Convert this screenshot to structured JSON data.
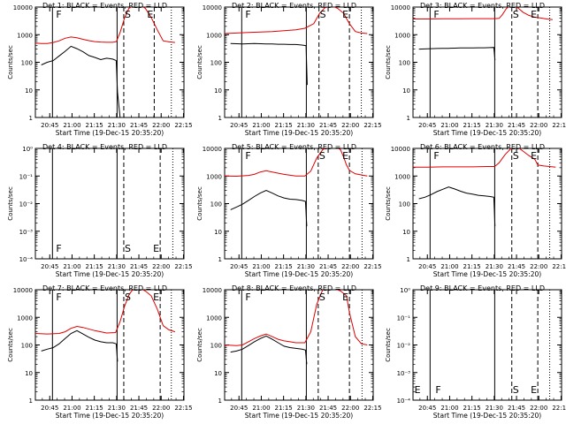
{
  "colors": {
    "events": "#000000",
    "lld": "#e00000",
    "axes": "#000000",
    "background": "#ffffff"
  },
  "common": {
    "ylabel": "Counts/sec",
    "xlabel": "Start Time (19-Dec-15 20:35:20)",
    "xtick_labels": [
      "20:45",
      "21:00",
      "21:15",
      "21:30",
      "21:45",
      "22:00",
      "22:15"
    ],
    "x_tick_minutes": [
      9.67,
      24.67,
      39.67,
      54.67,
      69.67,
      84.67,
      99.67
    ],
    "xlim_minutes": [
      0,
      100
    ],
    "ytick_labels": [
      "1",
      "10",
      "100",
      "1000",
      "10000"
    ],
    "ylim": [
      1,
      10000
    ],
    "yscale": "log"
  },
  "chart_data": [
    {
      "type": "line",
      "title": "Det 1: BLACK = Events, RED = LLD",
      "marker_labels": [
        "F",
        "S",
        "E"
      ],
      "markers": {
        "solid": [
          11.5,
          55.0
        ],
        "dashed": [
          59.5,
          80.0
        ],
        "dotted": [
          91.5
        ]
      },
      "events": {
        "x": [
          4,
          8,
          12,
          16,
          20,
          24,
          28,
          32,
          36,
          40,
          44,
          48,
          52,
          54.4,
          55.3,
          57
        ],
        "y": [
          80,
          100,
          115,
          170,
          250,
          380,
          310,
          240,
          175,
          150,
          125,
          140,
          130,
          115,
          8,
          0
        ]
      },
      "lld": {
        "x": [
          0,
          4,
          8,
          12,
          16,
          20,
          24,
          28,
          32,
          36,
          40,
          44,
          48,
          52,
          54.5,
          57,
          60,
          63,
          66,
          70,
          74,
          78,
          82,
          86,
          90,
          94
        ],
        "y": [
          500,
          480,
          480,
          520,
          600,
          740,
          820,
          770,
          680,
          610,
          560,
          540,
          530,
          530,
          560,
          1200,
          4000,
          9000,
          11000,
          12000,
          9000,
          4200,
          1500,
          600,
          550,
          520
        ]
      }
    },
    {
      "type": "line",
      "title": "Det 2: BLACK = Events, RED = LLD",
      "marker_labels": [
        "F",
        "S",
        "E"
      ],
      "markers": {
        "solid": [
          11.5,
          55.0
        ],
        "dashed": [
          63.5,
          84.0
        ],
        "dotted": [
          92.0
        ]
      },
      "events": {
        "x": [
          4,
          8,
          12,
          16,
          20,
          24,
          28,
          32,
          36,
          40,
          44,
          48,
          52,
          54.8,
          55.6
        ],
        "y": [
          480,
          470,
          460,
          470,
          480,
          470,
          460,
          460,
          450,
          450,
          440,
          440,
          420,
          400,
          15
        ]
      },
      "lld": {
        "x": [
          0,
          8,
          16,
          24,
          32,
          40,
          48,
          54,
          60,
          64,
          68,
          72,
          76,
          80,
          84,
          88,
          92,
          96
        ],
        "y": [
          1100,
          1150,
          1200,
          1250,
          1300,
          1400,
          1500,
          1700,
          2500,
          6000,
          10000,
          11000,
          9000,
          6000,
          2500,
          1300,
          1150,
          1100
        ]
      }
    },
    {
      "type": "line",
      "title": "Det 3: BLACK = Events, RED = LLD",
      "marker_labels": [
        "F",
        "S",
        "E"
      ],
      "markers": {
        "solid": [
          11.5,
          55.0
        ],
        "dashed": [
          66.5,
          84.0
        ],
        "dotted": [
          92.0
        ]
      },
      "events": {
        "x": [
          4,
          8,
          12,
          16,
          20,
          24,
          28,
          32,
          36,
          40,
          44,
          48,
          52,
          54.4,
          55.2
        ],
        "y": [
          300,
          305,
          310,
          315,
          320,
          320,
          325,
          330,
          330,
          330,
          335,
          335,
          340,
          345,
          120
        ]
      },
      "lld": {
        "x": [
          0,
          10,
          20,
          30,
          40,
          50,
          55,
          58,
          60,
          63,
          66,
          70,
          74,
          78,
          82,
          86,
          90,
          94
        ],
        "y": [
          3700,
          3700,
          3750,
          3750,
          3800,
          3800,
          3800,
          3900,
          5200,
          9000,
          11500,
          10000,
          6500,
          5000,
          4300,
          4000,
          3700,
          3500
        ]
      }
    },
    {
      "type": "line",
      "title": "Det 4: BLACK = Events, RED = LLD",
      "marker_labels": [
        "F",
        "S",
        "E"
      ],
      "markers": {
        "solid": [
          11.5,
          55.0
        ],
        "dashed": [
          59.5,
          84.0
        ],
        "dotted": [
          92.5
        ]
      },
      "events": null,
      "lld": null
    },
    {
      "type": "line",
      "title": "Det 5: BLACK = Events, RED = LLD",
      "marker_labels": [
        "F",
        "S",
        "E"
      ],
      "markers": {
        "solid": [
          11.5,
          55.0
        ],
        "dashed": [
          63.0,
          84.0
        ],
        "dotted": [
          92.5
        ]
      },
      "events": {
        "x": [
          4,
          8,
          12,
          16,
          20,
          24,
          28,
          32,
          36,
          40,
          44,
          48,
          52,
          54.4,
          55.3
        ],
        "y": [
          60,
          75,
          95,
          130,
          180,
          240,
          300,
          240,
          190,
          160,
          145,
          140,
          130,
          120,
          15
        ]
      },
      "lld": {
        "x": [
          0,
          8,
          16,
          20,
          24,
          28,
          32,
          40,
          48,
          54,
          58,
          62,
          66,
          70,
          74,
          78,
          80,
          82,
          84,
          88,
          92,
          96
        ],
        "y": [
          1000,
          980,
          1050,
          1150,
          1400,
          1550,
          1400,
          1150,
          1000,
          1000,
          1500,
          4500,
          9000,
          11500,
          12000,
          9000,
          5000,
          2500,
          1600,
          1200,
          1100,
          1000
        ]
      }
    },
    {
      "type": "line",
      "title": "Det 6: BLACK = Events, RED = LLD",
      "marker_labels": [
        "F",
        "S",
        "E"
      ],
      "markers": {
        "solid": [
          11.5,
          55.0
        ],
        "dashed": [
          66.5,
          84.0
        ],
        "dotted": [
          92.0
        ]
      },
      "events": {
        "x": [
          4,
          8,
          12,
          16,
          20,
          24,
          28,
          32,
          36,
          40,
          44,
          48,
          52,
          54.4,
          55.2
        ],
        "y": [
          150,
          170,
          210,
          270,
          330,
          400,
          340,
          280,
          240,
          220,
          200,
          190,
          180,
          170,
          15
        ]
      },
      "lld": {
        "x": [
          0,
          10,
          20,
          30,
          40,
          50,
          55,
          58,
          62,
          66,
          70,
          74,
          78,
          82,
          84,
          88,
          92,
          96
        ],
        "y": [
          2100,
          2100,
          2150,
          2150,
          2150,
          2200,
          2200,
          3000,
          6000,
          10000,
          11500,
          8000,
          5500,
          4000,
          2500,
          2300,
          2200,
          2100
        ]
      }
    },
    {
      "type": "line",
      "title": "Det 7: BLACK = Events, RED = LLD",
      "marker_labels": [
        "F",
        "S",
        "E"
      ],
      "markers": {
        "solid": [
          11.5,
          55.0
        ],
        "dashed": [
          59.5,
          84.0
        ],
        "dotted": [
          91.5
        ]
      },
      "events": {
        "x": [
          4,
          8,
          12,
          16,
          20,
          24,
          28,
          32,
          36,
          40,
          44,
          48,
          52,
          54.4,
          55.3
        ],
        "y": [
          60,
          70,
          80,
          110,
          170,
          260,
          330,
          250,
          190,
          150,
          130,
          120,
          120,
          110,
          25
        ]
      },
      "lld": {
        "x": [
          0,
          8,
          16,
          20,
          24,
          28,
          32,
          40,
          48,
          54,
          57,
          60,
          63,
          66,
          70,
          74,
          78,
          82,
          86,
          90,
          94
        ],
        "y": [
          260,
          250,
          260,
          300,
          400,
          470,
          430,
          330,
          270,
          280,
          700,
          2500,
          6500,
          11000,
          11500,
          9000,
          6000,
          2000,
          500,
          350,
          300
        ]
      }
    },
    {
      "type": "line",
      "title": "Det 8: BLACK = Events, RED = LLD",
      "marker_labels": [
        "F",
        "S",
        "E"
      ],
      "markers": {
        "solid": [
          11.5,
          55.0
        ],
        "dashed": [
          63.0,
          84.0
        ],
        "dotted": [
          92.5
        ]
      },
      "events": {
        "x": [
          4,
          8,
          12,
          16,
          20,
          24,
          28,
          32,
          36,
          40,
          44,
          48,
          52,
          54.4,
          55.3
        ],
        "y": [
          55,
          60,
          70,
          95,
          130,
          170,
          210,
          160,
          120,
          90,
          80,
          75,
          70,
          65,
          20
        ]
      },
      "lld": {
        "x": [
          0,
          8,
          12,
          16,
          20,
          24,
          28,
          32,
          36,
          40,
          44,
          48,
          54,
          58,
          62,
          66,
          70,
          74,
          78,
          82,
          84,
          88,
          92,
          96
        ],
        "y": [
          100,
          95,
          100,
          130,
          170,
          210,
          250,
          200,
          160,
          140,
          130,
          120,
          120,
          300,
          3000,
          10000,
          11500,
          11000,
          9000,
          6000,
          1500,
          200,
          110,
          100
        ]
      }
    },
    {
      "type": "line",
      "title": "Det 9: BLACK = Events, RED = LLD",
      "marker_labels": [
        "E",
        "F",
        "S",
        "E"
      ],
      "markers": {
        "solid": [
          11.5,
          55.0
        ],
        "dashed": [
          66.5,
          84.0
        ],
        "dotted": [
          92.0
        ]
      },
      "events": null,
      "lld": null
    }
  ]
}
